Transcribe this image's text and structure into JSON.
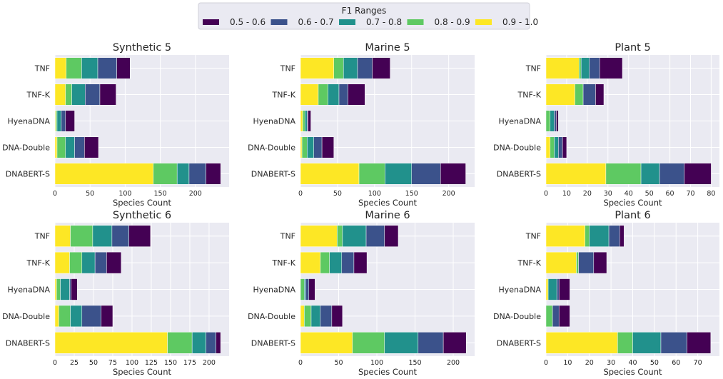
{
  "legend": {
    "title": "F1 Ranges",
    "entries": [
      "0.5 - 0.6",
      "0.6 - 0.7",
      "0.7 - 0.8",
      "0.8 - 0.9",
      "0.9 - 1.0"
    ],
    "colors": [
      "#440154",
      "#3b528b",
      "#21918c",
      "#5ec962",
      "#fde725"
    ],
    "placement": "top-center"
  },
  "chart_data": [
    {
      "type": "bar",
      "orientation": "horizontal",
      "stacked": true,
      "title": "Synthetic 5",
      "xlabel": "Species Count",
      "ylabel": "",
      "categories": [
        "TNF",
        "TNF-K",
        "HyenaDNA",
        "DNA-Double",
        "DNABERT-S"
      ],
      "xlim": [
        0,
        248
      ],
      "xticks": [
        0,
        50,
        100,
        150,
        200
      ],
      "grid": true,
      "series": [
        {
          "name": "0.9 - 1.0",
          "values": [
            16,
            15,
            1,
            3,
            140
          ]
        },
        {
          "name": "0.8 - 0.9",
          "values": [
            22,
            9,
            2,
            12,
            34
          ]
        },
        {
          "name": "0.7 - 0.8",
          "values": [
            23,
            19,
            6,
            13,
            17
          ]
        },
        {
          "name": "0.6 - 0.7",
          "values": [
            27,
            21,
            6,
            14,
            24
          ]
        },
        {
          "name": "0.5 - 0.6",
          "values": [
            19,
            23,
            13,
            20,
            21
          ]
        }
      ]
    },
    {
      "type": "bar",
      "orientation": "horizontal",
      "stacked": true,
      "title": "Marine 5",
      "xlabel": "Species Count",
      "ylabel": "",
      "categories": [
        "TNF",
        "TNF-K",
        "HyenaDNA",
        "DNA-Double",
        "DNABERT-S"
      ],
      "xlim": [
        0,
        235
      ],
      "xticks": [
        0,
        50,
        100,
        150,
        200
      ],
      "grid": true,
      "series": [
        {
          "name": "0.9 - 1.0",
          "values": [
            45,
            24,
            3,
            2,
            79
          ]
        },
        {
          "name": "0.8 - 0.9",
          "values": [
            13,
            13,
            3,
            7,
            35
          ]
        },
        {
          "name": "0.7 - 0.8",
          "values": [
            19,
            15,
            3,
            9,
            36
          ]
        },
        {
          "name": "0.6 - 0.7",
          "values": [
            20,
            12,
            1,
            11,
            39
          ]
        },
        {
          "name": "0.5 - 0.6",
          "values": [
            24,
            23,
            4,
            16,
            34
          ]
        }
      ]
    },
    {
      "type": "bar",
      "orientation": "horizontal",
      "stacked": true,
      "title": "Plant 5",
      "xlabel": "Species Count",
      "ylabel": "",
      "categories": [
        "TNF",
        "TNF-K",
        "HyenaDNA",
        "DNA-Double",
        "DNABERT-S"
      ],
      "xlim": [
        0,
        84
      ],
      "xticks": [
        0,
        10,
        20,
        30,
        40,
        50,
        60,
        70,
        80
      ],
      "grid": true,
      "series": [
        {
          "name": "0.9 - 1.0",
          "values": [
            16,
            14,
            0,
            2,
            29
          ]
        },
        {
          "name": "0.8 - 0.9",
          "values": [
            1,
            4,
            2,
            2,
            17
          ]
        },
        {
          "name": "0.7 - 0.8",
          "values": [
            4,
            0,
            2,
            2,
            9
          ]
        },
        {
          "name": "0.6 - 0.7",
          "values": [
            5,
            6,
            1,
            2,
            12
          ]
        },
        {
          "name": "0.5 - 0.6",
          "values": [
            11,
            4,
            1,
            2,
            13
          ]
        }
      ]
    },
    {
      "type": "bar",
      "orientation": "horizontal",
      "stacked": true,
      "title": "Synthetic 6",
      "xlabel": "Species Count",
      "ylabel": "",
      "categories": [
        "TNF",
        "TNF-K",
        "HyenaDNA",
        "DNA-Double",
        "DNABERT-S"
      ],
      "xlim": [
        0,
        226
      ],
      "xticks": [
        0,
        25,
        50,
        75,
        100,
        125,
        150,
        175,
        200
      ],
      "grid": true,
      "series": [
        {
          "name": "0.9 - 1.0",
          "values": [
            20,
            19,
            2,
            5,
            146
          ]
        },
        {
          "name": "0.8 - 0.9",
          "values": [
            29,
            16,
            5,
            15,
            32
          ]
        },
        {
          "name": "0.7 - 0.8",
          "values": [
            25,
            17,
            12,
            15,
            18
          ]
        },
        {
          "name": "0.6 - 0.7",
          "values": [
            22,
            15,
            2,
            25,
            13
          ]
        },
        {
          "name": "0.5 - 0.6",
          "values": [
            28,
            19,
            8,
            15,
            6
          ]
        }
      ]
    },
    {
      "type": "bar",
      "orientation": "horizontal",
      "stacked": true,
      "title": "Marine 6",
      "xlabel": "Species Count",
      "ylabel": "",
      "categories": [
        "TNF",
        "TNF-K",
        "HyenaDNA",
        "DNA-Double",
        "DNABERT-S"
      ],
      "xlim": [
        0,
        228
      ],
      "xticks": [
        0,
        50,
        100,
        150,
        200
      ],
      "grid": true,
      "series": [
        {
          "name": "0.9 - 1.0",
          "values": [
            48,
            26,
            0,
            5,
            68
          ]
        },
        {
          "name": "0.8 - 0.9",
          "values": [
            7,
            12,
            5,
            9,
            42
          ]
        },
        {
          "name": "0.7 - 0.8",
          "values": [
            31,
            16,
            2,
            12,
            44
          ]
        },
        {
          "name": "0.6 - 0.7",
          "values": [
            24,
            16,
            4,
            15,
            33
          ]
        },
        {
          "name": "0.5 - 0.6",
          "values": [
            18,
            17,
            8,
            14,
            30
          ]
        }
      ]
    },
    {
      "type": "bar",
      "orientation": "horizontal",
      "stacked": true,
      "title": "Plant 6",
      "xlabel": "Species Count",
      "ylabel": "",
      "categories": [
        "TNF",
        "TNF-K",
        "HyenaDNA",
        "DNA-Double",
        "DNABERT-S"
      ],
      "xlim": [
        0,
        80
      ],
      "xticks": [
        0,
        10,
        20,
        30,
        40,
        50,
        60,
        70
      ],
      "grid": true,
      "series": [
        {
          "name": "0.9 - 1.0",
          "values": [
            18,
            14,
            1,
            0,
            33
          ]
        },
        {
          "name": "0.8 - 0.9",
          "values": [
            2,
            1,
            0,
            3,
            7
          ]
        },
        {
          "name": "0.7 - 0.8",
          "values": [
            9,
            0,
            4,
            0,
            13
          ]
        },
        {
          "name": "0.6 - 0.7",
          "values": [
            5,
            7,
            1,
            3,
            12
          ]
        },
        {
          "name": "0.5 - 0.6",
          "values": [
            2,
            6,
            5,
            5,
            11
          ]
        }
      ]
    }
  ]
}
